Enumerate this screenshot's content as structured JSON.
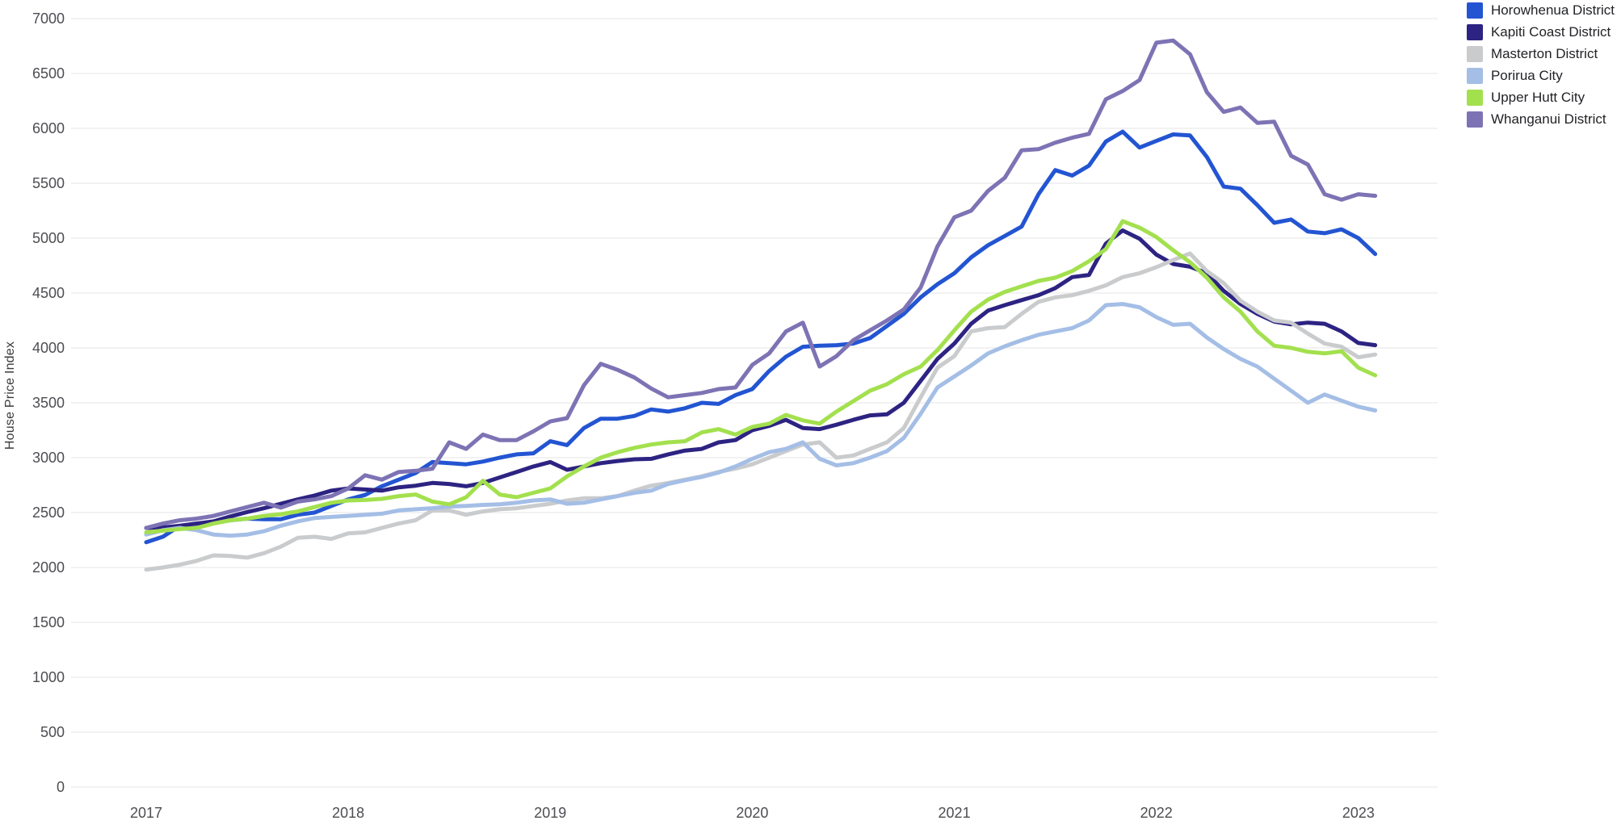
{
  "chart_data": {
    "type": "line",
    "title": "",
    "xlabel": "",
    "ylabel": "House Price Index",
    "x_start": "2017-01",
    "x_end": "2023-02",
    "x_interval": "monthly",
    "x_ticks": [
      "2017",
      "2018",
      "2019",
      "2020",
      "2021",
      "2022",
      "2023"
    ],
    "x_tick_month_index": [
      0,
      12,
      24,
      36,
      48,
      60,
      72
    ],
    "y_ticks": [
      0,
      500,
      1000,
      1500,
      2000,
      2500,
      3000,
      3500,
      4000,
      4500,
      5000,
      5500,
      6000,
      6500,
      7000
    ],
    "ylim": [
      0,
      7000
    ],
    "grid": true,
    "gridline_color": "#ededef",
    "background_color": "#ffffff",
    "legend_position": "top-right",
    "series": [
      {
        "name": "Horowhenua District",
        "color": "#2355d2",
        "values": [
          2230,
          2280,
          2380,
          2400,
          2405,
          2430,
          2445,
          2440,
          2440,
          2480,
          2500,
          2560,
          2620,
          2660,
          2740,
          2800,
          2860,
          2960,
          2950,
          2940,
          2965,
          3000,
          3030,
          3040,
          3150,
          3115,
          3270,
          3355,
          3355,
          3380,
          3440,
          3420,
          3450,
          3500,
          3490,
          3570,
          3625,
          3790,
          3920,
          4010,
          4020,
          4025,
          4040,
          4090,
          4200,
          4310,
          4460,
          4580,
          4680,
          4825,
          4935,
          5020,
          5105,
          5400,
          5620,
          5570,
          5660,
          5880,
          5970,
          5825,
          5885,
          5945,
          5935,
          5740,
          5470,
          5450,
          5300,
          5140,
          5170,
          5060,
          5045,
          5080,
          5000,
          4855
        ]
      },
      {
        "name": "Kapiti Coast District",
        "color": "#2d2382",
        "values": [
          2360,
          2365,
          2380,
          2400,
          2420,
          2465,
          2505,
          2540,
          2580,
          2620,
          2655,
          2700,
          2720,
          2710,
          2700,
          2730,
          2745,
          2770,
          2760,
          2740,
          2770,
          2820,
          2870,
          2920,
          2960,
          2890,
          2920,
          2950,
          2970,
          2985,
          2990,
          3030,
          3065,
          3080,
          3140,
          3160,
          3250,
          3290,
          3345,
          3270,
          3260,
          3300,
          3345,
          3385,
          3395,
          3500,
          3700,
          3900,
          4040,
          4220,
          4340,
          4390,
          4435,
          4480,
          4545,
          4645,
          4665,
          4950,
          5070,
          4995,
          4850,
          4765,
          4740,
          4680,
          4520,
          4400,
          4310,
          4240,
          4215,
          4230,
          4220,
          4150,
          4045,
          4025
        ]
      },
      {
        "name": "Masterton District",
        "color": "#c9cbcd",
        "values": [
          1980,
          2000,
          2025,
          2060,
          2110,
          2105,
          2090,
          2130,
          2190,
          2270,
          2280,
          2260,
          2310,
          2320,
          2360,
          2400,
          2430,
          2520,
          2520,
          2480,
          2510,
          2530,
          2540,
          2560,
          2580,
          2610,
          2630,
          2630,
          2650,
          2700,
          2745,
          2770,
          2800,
          2830,
          2870,
          2900,
          2940,
          3000,
          3060,
          3120,
          3140,
          3000,
          3020,
          3080,
          3140,
          3270,
          3550,
          3820,
          3925,
          4150,
          4180,
          4190,
          4310,
          4420,
          4460,
          4480,
          4520,
          4570,
          4645,
          4680,
          4735,
          4800,
          4860,
          4700,
          4590,
          4430,
          4330,
          4250,
          4230,
          4130,
          4040,
          4010,
          3915,
          3940
        ]
      },
      {
        "name": "Porirua City",
        "color": "#a4bee6",
        "values": [
          2300,
          2340,
          2360,
          2340,
          2300,
          2290,
          2300,
          2330,
          2380,
          2420,
          2450,
          2460,
          2470,
          2480,
          2490,
          2520,
          2530,
          2540,
          2555,
          2560,
          2570,
          2575,
          2590,
          2610,
          2620,
          2580,
          2590,
          2620,
          2650,
          2680,
          2700,
          2760,
          2795,
          2825,
          2865,
          2920,
          2990,
          3050,
          3080,
          3140,
          2990,
          2930,
          2950,
          3000,
          3060,
          3180,
          3400,
          3640,
          3740,
          3840,
          3950,
          4015,
          4070,
          4120,
          4150,
          4180,
          4250,
          4390,
          4400,
          4370,
          4280,
          4210,
          4220,
          4095,
          3990,
          3900,
          3830,
          3720,
          3610,
          3500,
          3575,
          3520,
          3465,
          3430
        ]
      },
      {
        "name": "Upper Hutt City",
        "color": "#a3e04e",
        "values": [
          2320,
          2335,
          2350,
          2360,
          2400,
          2430,
          2445,
          2470,
          2485,
          2510,
          2550,
          2590,
          2610,
          2615,
          2625,
          2650,
          2665,
          2600,
          2575,
          2640,
          2790,
          2665,
          2640,
          2680,
          2720,
          2830,
          2920,
          3000,
          3050,
          3090,
          3120,
          3140,
          3150,
          3230,
          3260,
          3210,
          3280,
          3310,
          3390,
          3340,
          3310,
          3420,
          3515,
          3610,
          3670,
          3760,
          3830,
          3980,
          4160,
          4330,
          4440,
          4510,
          4560,
          4610,
          4640,
          4700,
          4790,
          4900,
          5155,
          5095,
          5010,
          4890,
          4780,
          4640,
          4460,
          4330,
          4150,
          4020,
          4000,
          3965,
          3950,
          3970,
          3820,
          3750
        ]
      },
      {
        "name": "Whanganui District",
        "color": "#7d73b4",
        "values": [
          2360,
          2400,
          2430,
          2445,
          2470,
          2510,
          2550,
          2590,
          2545,
          2600,
          2620,
          2650,
          2720,
          2840,
          2800,
          2870,
          2880,
          2900,
          3140,
          3080,
          3210,
          3160,
          3160,
          3240,
          3330,
          3360,
          3660,
          3855,
          3800,
          3730,
          3630,
          3550,
          3570,
          3590,
          3625,
          3640,
          3845,
          3950,
          4150,
          4230,
          3830,
          3925,
          4070,
          4160,
          4250,
          4350,
          4550,
          4925,
          5190,
          5250,
          5430,
          5550,
          5800,
          5810,
          5870,
          5915,
          5950,
          6265,
          6340,
          6440,
          6780,
          6800,
          6675,
          6330,
          6150,
          6190,
          6050,
          6060,
          5750,
          5670,
          5400,
          5350,
          5400,
          5385
        ]
      }
    ]
  }
}
